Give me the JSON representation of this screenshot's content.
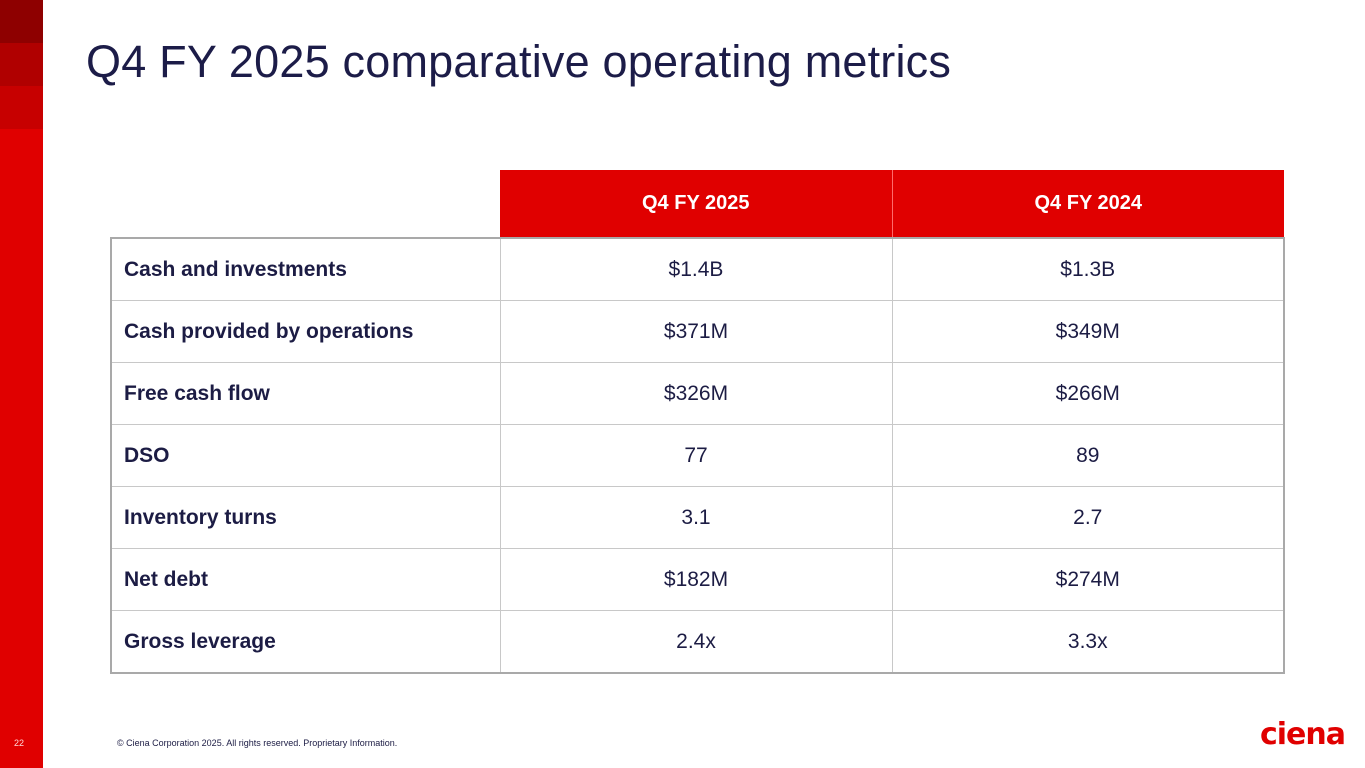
{
  "page": {
    "title": "Q4 FY 2025 comparative operating metrics",
    "page_number": "22",
    "footer": "© Ciena Corporation 2025. All rights reserved. Proprietary Information.",
    "logo_text": "ciena"
  },
  "colors": {
    "brand_red": "#e00000",
    "title_navy": "#1c1c48"
  },
  "table": {
    "headers": [
      "",
      "Q4 FY 2025",
      "Q4 FY 2024"
    ],
    "rows": [
      {
        "label": "Cash and investments",
        "fy2025": "$1.4B",
        "fy2024": "$1.3B"
      },
      {
        "label": "Cash provided by operations",
        "fy2025": "$371M",
        "fy2024": "$349M"
      },
      {
        "label": "Free cash flow",
        "fy2025": "$326M",
        "fy2024": "$266M"
      },
      {
        "label": "DSO",
        "fy2025": "77",
        "fy2024": "89"
      },
      {
        "label": "Inventory turns",
        "fy2025": "3.1",
        "fy2024": "2.7"
      },
      {
        "label": "Net debt",
        "fy2025": "$182M",
        "fy2024": "$274M"
      },
      {
        "label": "Gross leverage",
        "fy2025": "2.4x",
        "fy2024": "3.3x"
      }
    ]
  }
}
